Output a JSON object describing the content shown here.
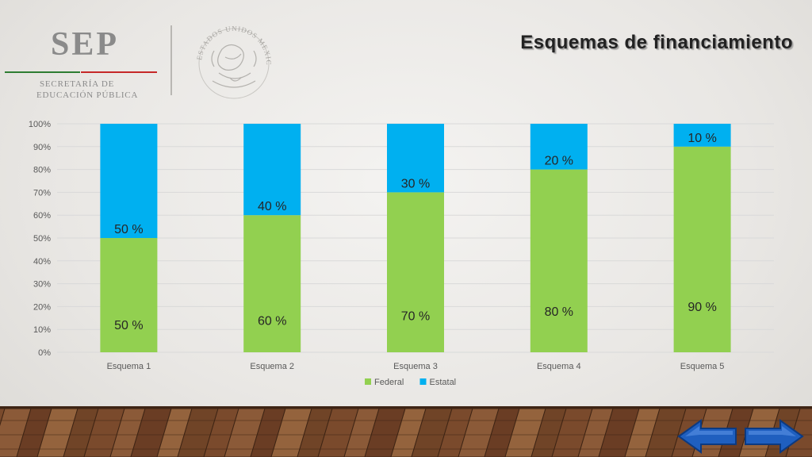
{
  "header": {
    "logo_text": "SEP",
    "logo_subtitle_line1": "SECRETARÍA DE",
    "logo_subtitle_line2": "EDUCACIÓN PÚBLICA",
    "seal_text": "ESTADOS UNIDOS MEXICANOS"
  },
  "title": "Esquemas de financiamiento",
  "chart_data": {
    "type": "bar",
    "stacked": true,
    "percent": true,
    "categories": [
      "Esquema 1",
      "Esquema 2",
      "Esquema 3",
      "Esquema 4",
      "Esquema 5"
    ],
    "series": [
      {
        "name": "Federal",
        "color": "#92d050",
        "values": [
          50,
          60,
          70,
          80,
          90
        ],
        "labels": [
          "50 %",
          "60 %",
          "70 %",
          "80 %",
          "90 %"
        ]
      },
      {
        "name": "Estatal",
        "color": "#00b0f0",
        "values": [
          50,
          40,
          30,
          20,
          10
        ],
        "labels": [
          "50 %",
          "40 %",
          "30 %",
          "20 %",
          "10 %"
        ]
      }
    ],
    "y_ticks": [
      "0%",
      "10%",
      "20%",
      "30%",
      "40%",
      "50%",
      "60%",
      "70%",
      "80%",
      "90%",
      "100%"
    ],
    "ylim": [
      0,
      100
    ],
    "grid": true,
    "legend_position": "bottom"
  },
  "nav": {
    "prev_icon": "arrow-left-icon",
    "next_icon": "arrow-right-icon",
    "color": "#1f5fbf"
  }
}
